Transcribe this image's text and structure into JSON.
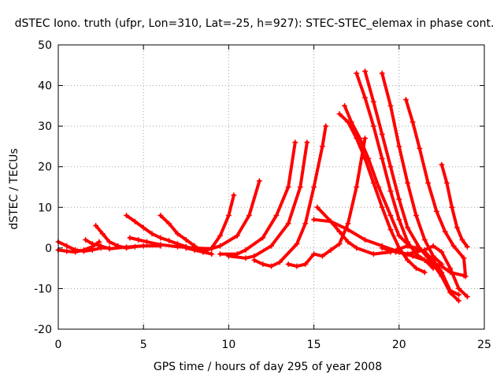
{
  "chart_data": {
    "type": "scatter",
    "title": "dSTEC Iono. truth (ufpr, Lon=310, Lat=-25, h=927): STEC-STEC_elemax in phase cont.",
    "xlabel": "GPS time / hours of day 295 of year 2008",
    "ylabel": "dSTEC  / TECUs",
    "xlim": [
      0,
      25
    ],
    "ylim": [
      -20,
      50
    ],
    "x_ticks": [
      "0",
      "5",
      "10",
      "15",
      "20",
      "25"
    ],
    "y_ticks": [
      "-20",
      "-10",
      "0",
      "10",
      "20",
      "30",
      "40",
      "50"
    ],
    "grid": true,
    "marker": "+",
    "color": "#ff0000",
    "series": [
      {
        "points": [
          [
            0.0,
            1.5
          ],
          [
            0.5,
            0.5
          ],
          [
            1.0,
            -0.5
          ],
          [
            1.5,
            -0.8
          ],
          [
            2.0,
            -0.5
          ],
          [
            2.5,
            0.0
          ],
          [
            3.0,
            0.0
          ]
        ]
      },
      {
        "points": [
          [
            0.0,
            -0.5
          ],
          [
            0.5,
            -0.8
          ],
          [
            1.0,
            -1.0
          ],
          [
            1.5,
            -0.5
          ],
          [
            2.0,
            0.3
          ],
          [
            2.4,
            1.5
          ]
        ]
      },
      {
        "points": [
          [
            1.6,
            2.0
          ],
          [
            2.0,
            1.0
          ],
          [
            2.5,
            0.5
          ],
          [
            3.0,
            -0.2
          ],
          [
            4.0,
            0.2
          ],
          [
            5.0,
            0.5
          ],
          [
            6.0,
            0.5
          ]
        ]
      },
      {
        "points": [
          [
            2.2,
            5.5
          ],
          [
            2.6,
            3.5
          ],
          [
            3.0,
            1.5
          ],
          [
            3.5,
            0.5
          ],
          [
            4.0,
            0.0
          ],
          [
            4.5,
            0.3
          ]
        ]
      },
      {
        "points": [
          [
            4.0,
            8.0
          ],
          [
            4.5,
            6.5
          ],
          [
            5.0,
            5.0
          ],
          [
            5.5,
            3.5
          ],
          [
            6.0,
            2.5
          ],
          [
            6.5,
            1.8
          ],
          [
            7.0,
            1.0
          ],
          [
            7.5,
            0.3
          ],
          [
            8.0,
            -0.5
          ],
          [
            8.5,
            -1.0
          ],
          [
            9.0,
            -1.5
          ]
        ]
      },
      {
        "points": [
          [
            4.2,
            2.5
          ],
          [
            4.7,
            2.0
          ],
          [
            5.2,
            1.5
          ],
          [
            6.0,
            0.8
          ],
          [
            7.0,
            0.3
          ],
          [
            8.0,
            0.0
          ],
          [
            9.0,
            -0.2
          ]
        ]
      },
      {
        "points": [
          [
            6.0,
            8.0
          ],
          [
            6.5,
            6.0
          ],
          [
            7.0,
            3.5
          ],
          [
            7.5,
            2.0
          ],
          [
            8.0,
            0.5
          ],
          [
            8.3,
            -0.5
          ]
        ]
      },
      {
        "points": [
          [
            7.5,
            0.0
          ],
          [
            8.0,
            -0.5
          ],
          [
            8.5,
            -1.0
          ],
          [
            9.0,
            0.0
          ],
          [
            9.5,
            3.0
          ],
          [
            10.0,
            8.0
          ],
          [
            10.3,
            13.0
          ]
        ]
      },
      {
        "points": [
          [
            8.5,
            -0.8
          ],
          [
            9.5,
            0.5
          ],
          [
            10.5,
            3.0
          ],
          [
            11.2,
            8.0
          ],
          [
            11.8,
            16.5
          ]
        ]
      },
      {
        "points": [
          [
            9.5,
            -1.5
          ],
          [
            10.5,
            -1.5
          ],
          [
            11.0,
            -0.5
          ],
          [
            12.0,
            2.5
          ],
          [
            12.8,
            8.0
          ],
          [
            13.5,
            15.0
          ],
          [
            13.9,
            26.0
          ]
        ]
      },
      {
        "points": [
          [
            10.0,
            -2.0
          ],
          [
            11.0,
            -2.5
          ],
          [
            11.5,
            -2.0
          ],
          [
            12.5,
            0.5
          ],
          [
            13.5,
            6.0
          ],
          [
            14.2,
            15.0
          ],
          [
            14.6,
            26.0
          ]
        ]
      },
      {
        "points": [
          [
            11.5,
            -3.0
          ],
          [
            12.0,
            -4.0
          ],
          [
            12.5,
            -4.5
          ],
          [
            13.0,
            -3.5
          ],
          [
            14.0,
            1.0
          ],
          [
            14.5,
            6.0
          ],
          [
            15.0,
            15.0
          ],
          [
            15.5,
            25.0
          ],
          [
            15.7,
            30.0
          ]
        ]
      },
      {
        "points": [
          [
            13.5,
            -4.0
          ],
          [
            14.0,
            -4.5
          ],
          [
            14.5,
            -4.0
          ],
          [
            15.0,
            -1.5
          ],
          [
            15.5,
            -2.0
          ],
          [
            16.0,
            -0.5
          ],
          [
            16.5,
            1.0
          ],
          [
            17.0,
            6.0
          ],
          [
            17.5,
            15.0
          ],
          [
            18.0,
            27.0
          ]
        ]
      },
      {
        "points": [
          [
            15.2,
            10.0
          ],
          [
            16.0,
            6.5
          ],
          [
            16.5,
            4.0
          ],
          [
            17.0,
            1.5
          ],
          [
            17.5,
            0.0
          ],
          [
            18.5,
            -1.5
          ],
          [
            19.5,
            -1.0
          ],
          [
            20.5,
            0.5
          ],
          [
            21.0,
            0.0
          ],
          [
            21.5,
            -1.0
          ],
          [
            22.0,
            -3.0
          ],
          [
            22.5,
            -6.0
          ],
          [
            23.0,
            -10.5
          ],
          [
            23.5,
            -11.5
          ]
        ]
      },
      {
        "points": [
          [
            15.0,
            7.0
          ],
          [
            16.0,
            6.5
          ],
          [
            17.0,
            4.5
          ],
          [
            18.0,
            2.0
          ],
          [
            19.0,
            0.5
          ],
          [
            20.0,
            -1.0
          ],
          [
            20.8,
            -2.0
          ],
          [
            21.5,
            -3.0
          ],
          [
            22.5,
            -4.5
          ],
          [
            23.0,
            -6.0
          ],
          [
            23.8,
            -6.8
          ]
        ]
      },
      {
        "points": [
          [
            16.5,
            33.0
          ],
          [
            17.0,
            31.0
          ],
          [
            17.5,
            27.0
          ],
          [
            18.0,
            22.0
          ],
          [
            18.5,
            16.0
          ],
          [
            19.0,
            10.0
          ],
          [
            19.5,
            4.5
          ],
          [
            20.0,
            0.0
          ],
          [
            20.5,
            -3.0
          ],
          [
            21.0,
            -5.0
          ],
          [
            21.5,
            -6.0
          ]
        ]
      },
      {
        "points": [
          [
            16.8,
            35.0
          ],
          [
            17.2,
            31.0
          ],
          [
            17.7,
            27.0
          ],
          [
            18.2,
            22.0
          ],
          [
            18.8,
            15.0
          ],
          [
            19.5,
            8.0
          ],
          [
            20.0,
            3.0
          ],
          [
            20.6,
            0.5
          ],
          [
            21.2,
            -0.5
          ]
        ]
      },
      {
        "points": [
          [
            17.5,
            43.0
          ],
          [
            18.0,
            37.0
          ],
          [
            18.5,
            30.0
          ],
          [
            19.0,
            22.0
          ],
          [
            19.5,
            14.0
          ],
          [
            20.0,
            7.0
          ],
          [
            20.5,
            1.5
          ],
          [
            21.0,
            -1.5
          ],
          [
            21.5,
            -3.0
          ],
          [
            22.0,
            -5.0
          ]
        ]
      },
      {
        "points": [
          [
            18.0,
            43.5
          ],
          [
            18.5,
            36.0
          ],
          [
            19.0,
            28.0
          ],
          [
            19.5,
            20.0
          ],
          [
            20.0,
            12.0
          ],
          [
            20.5,
            5.0
          ],
          [
            21.2,
            0.0
          ],
          [
            22.0,
            -4.0
          ],
          [
            22.5,
            -7.0
          ],
          [
            23.0,
            -11.0
          ],
          [
            23.5,
            -13.0
          ]
        ]
      },
      {
        "points": [
          [
            19.0,
            43.0
          ],
          [
            19.5,
            35.0
          ],
          [
            20.0,
            25.0
          ],
          [
            20.5,
            16.0
          ],
          [
            21.0,
            8.0
          ],
          [
            21.5,
            2.0
          ],
          [
            22.0,
            -2.0
          ],
          [
            22.5,
            -4.0
          ]
        ]
      },
      {
        "points": [
          [
            20.4,
            36.5
          ],
          [
            20.8,
            31.0
          ],
          [
            21.2,
            24.5
          ],
          [
            21.7,
            16.0
          ],
          [
            22.2,
            9.0
          ],
          [
            22.7,
            4.0
          ],
          [
            23.2,
            0.5
          ],
          [
            23.8,
            -2.5
          ],
          [
            23.9,
            -7.0
          ]
        ]
      },
      {
        "points": [
          [
            22.5,
            20.5
          ],
          [
            22.8,
            16.0
          ],
          [
            23.1,
            10.0
          ],
          [
            23.4,
            5.0
          ],
          [
            23.7,
            2.0
          ],
          [
            24.0,
            0.3
          ]
        ]
      },
      {
        "points": [
          [
            19.0,
            0.0
          ],
          [
            19.8,
            -1.0
          ],
          [
            20.5,
            -1.5
          ],
          [
            21.5,
            -0.5
          ],
          [
            22.0,
            0.5
          ],
          [
            22.5,
            -1.0
          ],
          [
            23.0,
            -5.0
          ],
          [
            23.5,
            -10.0
          ],
          [
            24.0,
            -12.0
          ]
        ]
      }
    ]
  }
}
